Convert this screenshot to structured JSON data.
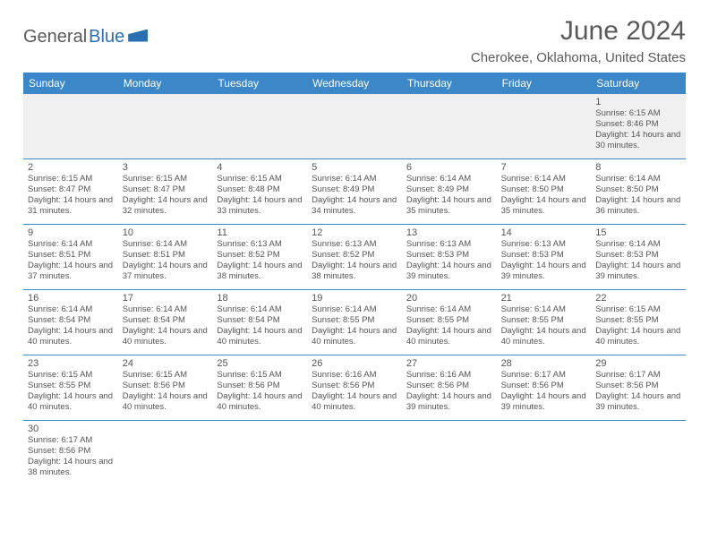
{
  "logo": {
    "part1": "General",
    "part2": "Blue"
  },
  "title": "June 2024",
  "location": "Cherokee, Oklahoma, United States",
  "colors": {
    "header_bg": "#3b87c8",
    "header_text": "#ffffff",
    "accent": "#2a6fb0",
    "text_muted": "#5a5a5a",
    "cell_text": "#555555",
    "blank_row_bg": "#f0f0f0",
    "border": "#3b87c8"
  },
  "day_names": [
    "Sunday",
    "Monday",
    "Tuesday",
    "Wednesday",
    "Thursday",
    "Friday",
    "Saturday"
  ],
  "weeks": [
    [
      null,
      null,
      null,
      null,
      null,
      null,
      {
        "n": "1",
        "sr": "6:15 AM",
        "ss": "8:46 PM",
        "dl": "14 hours and 30 minutes."
      }
    ],
    [
      {
        "n": "2",
        "sr": "6:15 AM",
        "ss": "8:47 PM",
        "dl": "14 hours and 31 minutes."
      },
      {
        "n": "3",
        "sr": "6:15 AM",
        "ss": "8:47 PM",
        "dl": "14 hours and 32 minutes."
      },
      {
        "n": "4",
        "sr": "6:15 AM",
        "ss": "8:48 PM",
        "dl": "14 hours and 33 minutes."
      },
      {
        "n": "5",
        "sr": "6:14 AM",
        "ss": "8:49 PM",
        "dl": "14 hours and 34 minutes."
      },
      {
        "n": "6",
        "sr": "6:14 AM",
        "ss": "8:49 PM",
        "dl": "14 hours and 35 minutes."
      },
      {
        "n": "7",
        "sr": "6:14 AM",
        "ss": "8:50 PM",
        "dl": "14 hours and 35 minutes."
      },
      {
        "n": "8",
        "sr": "6:14 AM",
        "ss": "8:50 PM",
        "dl": "14 hours and 36 minutes."
      }
    ],
    [
      {
        "n": "9",
        "sr": "6:14 AM",
        "ss": "8:51 PM",
        "dl": "14 hours and 37 minutes."
      },
      {
        "n": "10",
        "sr": "6:14 AM",
        "ss": "8:51 PM",
        "dl": "14 hours and 37 minutes."
      },
      {
        "n": "11",
        "sr": "6:13 AM",
        "ss": "8:52 PM",
        "dl": "14 hours and 38 minutes."
      },
      {
        "n": "12",
        "sr": "6:13 AM",
        "ss": "8:52 PM",
        "dl": "14 hours and 38 minutes."
      },
      {
        "n": "13",
        "sr": "6:13 AM",
        "ss": "8:53 PM",
        "dl": "14 hours and 39 minutes."
      },
      {
        "n": "14",
        "sr": "6:13 AM",
        "ss": "8:53 PM",
        "dl": "14 hours and 39 minutes."
      },
      {
        "n": "15",
        "sr": "6:14 AM",
        "ss": "8:53 PM",
        "dl": "14 hours and 39 minutes."
      }
    ],
    [
      {
        "n": "16",
        "sr": "6:14 AM",
        "ss": "8:54 PM",
        "dl": "14 hours and 40 minutes."
      },
      {
        "n": "17",
        "sr": "6:14 AM",
        "ss": "8:54 PM",
        "dl": "14 hours and 40 minutes."
      },
      {
        "n": "18",
        "sr": "6:14 AM",
        "ss": "8:54 PM",
        "dl": "14 hours and 40 minutes."
      },
      {
        "n": "19",
        "sr": "6:14 AM",
        "ss": "8:55 PM",
        "dl": "14 hours and 40 minutes."
      },
      {
        "n": "20",
        "sr": "6:14 AM",
        "ss": "8:55 PM",
        "dl": "14 hours and 40 minutes."
      },
      {
        "n": "21",
        "sr": "6:14 AM",
        "ss": "8:55 PM",
        "dl": "14 hours and 40 minutes."
      },
      {
        "n": "22",
        "sr": "6:15 AM",
        "ss": "8:55 PM",
        "dl": "14 hours and 40 minutes."
      }
    ],
    [
      {
        "n": "23",
        "sr": "6:15 AM",
        "ss": "8:55 PM",
        "dl": "14 hours and 40 minutes."
      },
      {
        "n": "24",
        "sr": "6:15 AM",
        "ss": "8:56 PM",
        "dl": "14 hours and 40 minutes."
      },
      {
        "n": "25",
        "sr": "6:15 AM",
        "ss": "8:56 PM",
        "dl": "14 hours and 40 minutes."
      },
      {
        "n": "26",
        "sr": "6:16 AM",
        "ss": "8:56 PM",
        "dl": "14 hours and 40 minutes."
      },
      {
        "n": "27",
        "sr": "6:16 AM",
        "ss": "8:56 PM",
        "dl": "14 hours and 39 minutes."
      },
      {
        "n": "28",
        "sr": "6:17 AM",
        "ss": "8:56 PM",
        "dl": "14 hours and 39 minutes."
      },
      {
        "n": "29",
        "sr": "6:17 AM",
        "ss": "8:56 PM",
        "dl": "14 hours and 39 minutes."
      }
    ],
    [
      {
        "n": "30",
        "sr": "6:17 AM",
        "ss": "8:56 PM",
        "dl": "14 hours and 38 minutes."
      },
      null,
      null,
      null,
      null,
      null,
      null
    ]
  ],
  "labels": {
    "sunrise": "Sunrise:",
    "sunset": "Sunset:",
    "daylight": "Daylight:"
  }
}
